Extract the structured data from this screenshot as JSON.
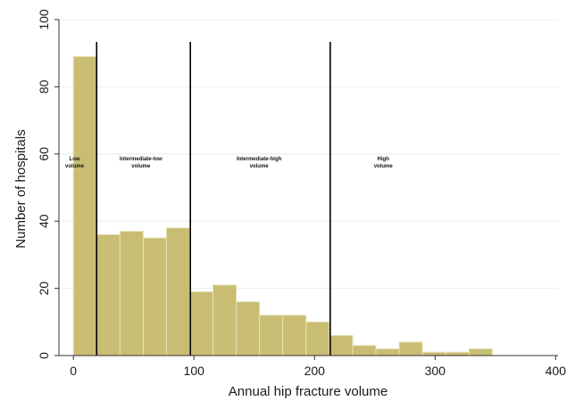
{
  "chart_data": {
    "type": "bar",
    "title": "",
    "xlabel": "Annual hip fracture volume",
    "ylabel": "Number of hospitals",
    "xlim": [
      -12,
      402
    ],
    "ylim": [
      0,
      100
    ],
    "x_ticks": [
      0,
      100,
      200,
      300,
      400
    ],
    "y_ticks": [
      0,
      20,
      40,
      60,
      80,
      100
    ],
    "bin_width": 19.3,
    "bins": [
      {
        "start": 0,
        "value": 89
      },
      {
        "start": 19.3,
        "value": 36
      },
      {
        "start": 38.6,
        "value": 37
      },
      {
        "start": 57.9,
        "value": 35
      },
      {
        "start": 77.2,
        "value": 38
      },
      {
        "start": 96.5,
        "value": 19
      },
      {
        "start": 115.8,
        "value": 21
      },
      {
        "start": 135.1,
        "value": 16
      },
      {
        "start": 154.4,
        "value": 12
      },
      {
        "start": 173.7,
        "value": 12
      },
      {
        "start": 193.0,
        "value": 10
      },
      {
        "start": 212.3,
        "value": 6
      },
      {
        "start": 231.6,
        "value": 3
      },
      {
        "start": 250.9,
        "value": 2
      },
      {
        "start": 270.2,
        "value": 4
      },
      {
        "start": 289.5,
        "value": 1
      },
      {
        "start": 308.8,
        "value": 1
      },
      {
        "start": 328.1,
        "value": 2
      }
    ],
    "cutoff_lines": [
      19.3,
      97,
      213
    ],
    "regions": [
      {
        "lines": [
          "Low",
          "volume"
        ],
        "x": 1,
        "y": 48
      },
      {
        "lines": [
          "Intermediate-low",
          "volume"
        ],
        "x": 56,
        "y": 48
      },
      {
        "lines": [
          "Intermediate-high",
          "volume"
        ],
        "x": 154,
        "y": 48
      },
      {
        "lines": [
          "High",
          "volume"
        ],
        "x": 257,
        "y": 48
      }
    ],
    "grid": true,
    "colors": {
      "bar_fill": "#c8bd72",
      "bar_stroke": "#e8e2b8",
      "cutoff": "#000000",
      "grid": "#e4eef2",
      "axis": "#333333"
    }
  }
}
